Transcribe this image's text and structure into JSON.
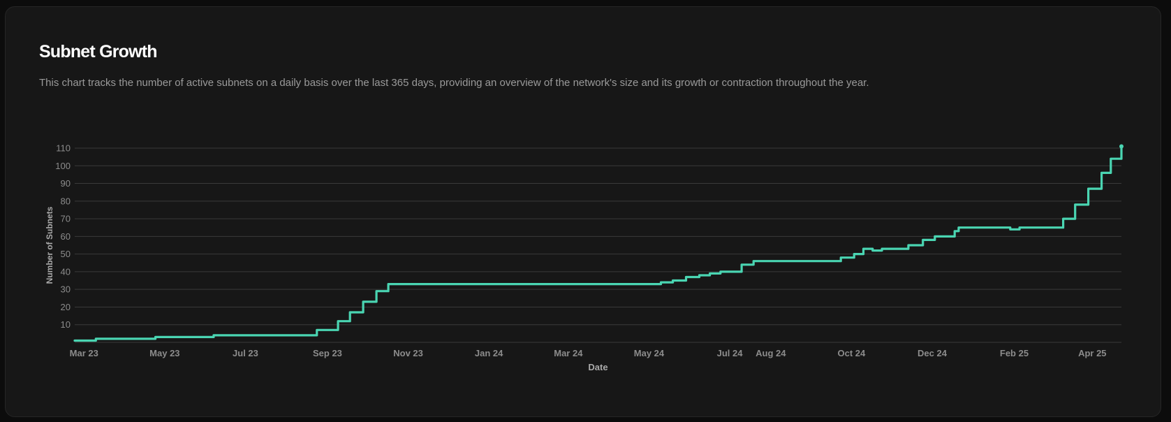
{
  "card": {
    "title": "Subnet Growth",
    "description": "This chart tracks the number of active subnets on a daily basis over the last 365 days, providing an overview of the network's size and its growth or contraction throughout the year."
  },
  "colors": {
    "line": "#4ad5b2",
    "grid": "#3a3a3a",
    "tick_text": "#8c8c8c",
    "label_text": "#aaaaaa"
  },
  "chart_data": {
    "type": "line",
    "title": "Subnet Growth",
    "xlabel": "Date",
    "ylabel": "Number of Subnets",
    "ylim": [
      0,
      110
    ],
    "xlim": [
      "2023-03-16",
      "2025-05-15"
    ],
    "y_ticks": [
      10,
      20,
      30,
      40,
      50,
      60,
      70,
      80,
      90,
      100,
      110
    ],
    "x_ticks": [
      {
        "date": "2023-03-23",
        "label": "Mar 23"
      },
      {
        "date": "2023-05-23",
        "label": "May 23"
      },
      {
        "date": "2023-07-23",
        "label": "Jul 23"
      },
      {
        "date": "2023-09-23",
        "label": "Sep 23"
      },
      {
        "date": "2023-11-23",
        "label": "Nov 23"
      },
      {
        "date": "2024-01-23",
        "label": "Jan 24"
      },
      {
        "date": "2024-03-23",
        "label": "Mar 24"
      },
      {
        "date": "2024-05-23",
        "label": "May 24"
      },
      {
        "date": "2024-07-23",
        "label": "Jul 24"
      },
      {
        "date": "2024-08-23",
        "label": "Aug 24"
      },
      {
        "date": "2024-10-23",
        "label": "Oct 24"
      },
      {
        "date": "2024-12-23",
        "label": "Dec 24"
      },
      {
        "date": "2025-02-23",
        "label": "Feb 25"
      },
      {
        "date": "2025-04-23",
        "label": "Apr 25"
      }
    ],
    "grid": true,
    "series": [
      {
        "x": [
          "2023-03-16",
          "2023-03-31",
          "2023-04-01",
          "2023-05-15",
          "2023-05-16",
          "2023-06-28",
          "2023-06-29",
          "2023-09-11",
          "2023-09-15",
          "2023-09-22",
          "2023-10-01",
          "2023-10-10",
          "2023-10-20",
          "2023-10-30",
          "2023-11-08",
          "2023-11-17",
          "2023-11-26",
          "2023-12-02",
          "2023-12-08",
          "2024-05-22",
          "2024-06-01",
          "2024-06-10",
          "2024-06-20",
          "2024-06-30",
          "2024-07-08",
          "2024-07-16",
          "2024-07-24",
          "2024-08-01",
          "2024-08-10",
          "2024-08-23",
          "2024-10-02",
          "2024-10-15",
          "2024-10-25",
          "2024-11-01",
          "2024-11-08",
          "2024-11-15",
          "2024-11-25",
          "2024-12-05",
          "2024-12-16",
          "2024-12-25",
          "2025-01-09",
          "2025-01-12",
          "2025-01-20",
          "2025-02-20",
          "2025-02-27",
          "2025-03-05",
          "2025-03-12",
          "2025-03-22",
          "2025-04-01",
          "2025-04-10",
          "2025-04-20",
          "2025-04-30",
          "2025-05-07",
          "2025-05-15"
        ],
        "y": [
          1,
          1,
          2,
          2,
          3,
          3,
          4,
          4,
          7,
          7,
          12,
          17,
          23,
          29,
          33,
          33,
          33,
          33,
          33,
          33,
          34,
          35,
          37,
          38,
          39,
          40,
          40,
          44,
          46,
          46,
          46,
          48,
          50,
          53,
          52,
          53,
          53,
          55,
          58,
          60,
          63,
          65,
          65,
          64,
          65,
          65,
          65,
          65,
          70,
          78,
          87,
          96,
          104,
          111
        ]
      }
    ]
  }
}
